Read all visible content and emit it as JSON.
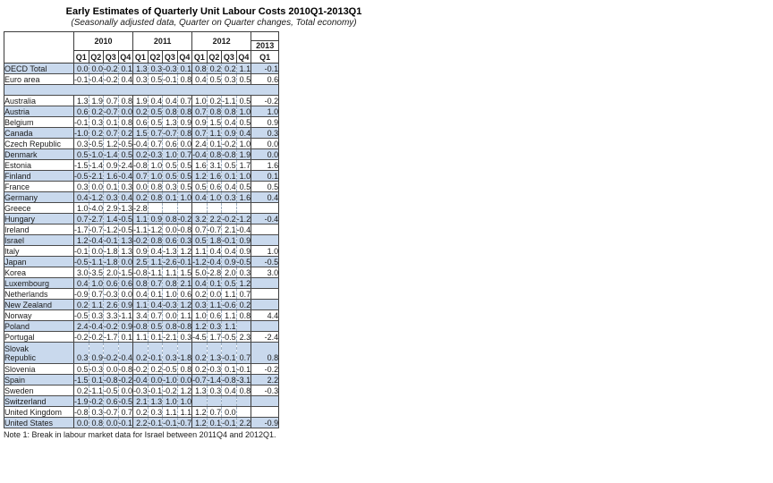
{
  "title": "Early Estimates of Quarterly Unit Labour Costs 2010Q1-2013Q1",
  "subtitle": "(Seasonally adjusted data, Quarter on Quarter changes, Total economy)",
  "note": "Note 1: Break in labour market data for Israel between 2011Q4 and 2012Q1.",
  "colors": {
    "row_highlight": "#c9d9ed",
    "border_dark": "#3c3c3c",
    "border_light": "#9fb0c2"
  },
  "table": {
    "year_groups": [
      {
        "label": "2010",
        "quarters": [
          "Q1",
          "Q2",
          "Q3",
          "Q4"
        ]
      },
      {
        "label": "2011",
        "quarters": [
          "Q1",
          "Q2",
          "Q3",
          "Q4"
        ]
      },
      {
        "label": "2012",
        "quarters": [
          "Q1",
          "Q2",
          "Q3",
          "Q4"
        ]
      },
      {
        "label": "2013",
        "quarters": [
          "Q1"
        ]
      }
    ],
    "rows": [
      {
        "name": "OECD Total",
        "values": [
          "0.0",
          "0.0",
          "-0.2",
          "0.1",
          "1.3",
          "0.3",
          "-0.3",
          "0.1",
          "0.8",
          "0.2",
          "0.2",
          "1.1",
          "-0.1"
        ]
      },
      {
        "name": "Euro area",
        "values": [
          "-0.1",
          "-0.4",
          "-0.2",
          "0.4",
          "0.3",
          "0.5",
          "-0.1",
          "0.8",
          "0.4",
          "0.5",
          "0.3",
          "0.5",
          "0.6"
        ]
      },
      {
        "separator": true
      },
      {
        "name": "Australia",
        "values": [
          "1.3",
          "1.9",
          "0.7",
          "0.8",
          "1.9",
          "0.4",
          "0.4",
          "0.7",
          "1.0",
          "0.2",
          "-1.1",
          "0.5",
          "-0.2"
        ]
      },
      {
        "name": "Austria",
        "values": [
          "0.6",
          "0.2",
          "-0.7",
          "0.0",
          "0.2",
          "0.5",
          "0.8",
          "0.8",
          "0.7",
          "0.8",
          "0.8",
          "1.0",
          "1.0"
        ]
      },
      {
        "name": "Belgium",
        "values": [
          "-0.1",
          "0.3",
          "0.1",
          "0.8",
          "0.6",
          "0.5",
          "1.3",
          "0.9",
          "0.9",
          "1.5",
          "0.4",
          "0.5",
          "0.9"
        ]
      },
      {
        "name": "Canada",
        "values": [
          "-1.0",
          "0.2",
          "0.7",
          "0.2",
          "1.5",
          "0.7",
          "-0.7",
          "0.8",
          "0.7",
          "1.1",
          "0.9",
          "0.4",
          "0.3"
        ]
      },
      {
        "name": "Czech Republic",
        "values": [
          "0.3",
          "-0.5",
          "1.2",
          "-0.5",
          "-0.4",
          "0.7",
          "0.6",
          "0.0",
          "2.4",
          "0.1",
          "-0.2",
          "1.0",
          "0.0"
        ]
      },
      {
        "name": "Denmark",
        "values": [
          "0.5",
          "-1.0",
          "-1.4",
          "0.5",
          "0.2",
          "-0.3",
          "1.0",
          "0.7",
          "-0.4",
          "0.8",
          "-0.8",
          "1.9",
          "0.0"
        ]
      },
      {
        "name": "Estonia",
        "values": [
          "-1.5",
          "-1.4",
          "0.9",
          "-2.4",
          "-0.8",
          "1.0",
          "0.5",
          "0.5",
          "1.6",
          "3.1",
          "0.5",
          "1.7",
          "1.6"
        ]
      },
      {
        "name": "Finland",
        "values": [
          "-0.5",
          "-2.1",
          "1.6",
          "-0.4",
          "0.7",
          "1.0",
          "0.5",
          "0.5",
          "1.2",
          "1.6",
          "0.1",
          "1.0",
          "0.1"
        ]
      },
      {
        "name": "France",
        "values": [
          "0.3",
          "0.0",
          "0.1",
          "0.3",
          "0.0",
          "0.8",
          "0.3",
          "0.5",
          "0.5",
          "0.6",
          "0.4",
          "0.5",
          "0.5"
        ]
      },
      {
        "name": "Germany",
        "values": [
          "0.4",
          "-1.2",
          "0.3",
          "0.4",
          "0.2",
          "0.8",
          "0.1",
          "1.0",
          "0.4",
          "1.0",
          "0.3",
          "1.6",
          "0.4"
        ]
      },
      {
        "name": "Greece",
        "values": [
          "1.0",
          "-4.0",
          "2.9",
          "-1.3",
          "-2.8",
          "",
          "",
          "",
          "",
          "",
          "",
          "",
          ""
        ]
      },
      {
        "name": "Hungary",
        "values": [
          "0.7",
          "-2.7",
          "1.4",
          "-0.5",
          "1.1",
          "0.9",
          "0.8",
          "-0.2",
          "3.2",
          "2.2",
          "-0.2",
          "-1.2",
          "-0.4"
        ]
      },
      {
        "name": "Ireland",
        "values": [
          "-1.7",
          "-0.7",
          "-1.2",
          "-0.5",
          "-1.1",
          "-1.2",
          "0.0",
          "-0.8",
          "0.7",
          "-0.7",
          "2.1",
          "-0.4",
          ""
        ]
      },
      {
        "name": "Israel",
        "values": [
          "1.2",
          "-0.4",
          "-0.1",
          "1.3",
          "-0.2",
          "0.8",
          "0.6",
          "0.3",
          "0.5",
          "1.8",
          "-0.1",
          "0.9",
          ""
        ]
      },
      {
        "name": "Italy",
        "values": [
          "-0.1",
          "0.0",
          "-1.8",
          "1.3",
          "0.9",
          "0.4",
          "-1.3",
          "1.2",
          "1.1",
          "0.4",
          "0.4",
          "0.9",
          "1.0"
        ]
      },
      {
        "name": "Japan",
        "values": [
          "-0.5",
          "-1.1",
          "-1.8",
          "0.0",
          "2.5",
          "1.1",
          "-2.6",
          "-0.1",
          "-1.2",
          "-0.4",
          "0.9",
          "-0.5",
          "-0.5"
        ]
      },
      {
        "name": "Korea",
        "values": [
          "3.0",
          "-3.5",
          "2.0",
          "-1.5",
          "-0.8",
          "-1.1",
          "1.1",
          "1.5",
          "5.0",
          "-2.8",
          "2.0",
          "0.3",
          "3.0"
        ]
      },
      {
        "name": "Luxembourg",
        "values": [
          "0.4",
          "1.0",
          "0.6",
          "0.6",
          "0.8",
          "0.7",
          "0.8",
          "2.1",
          "0.4",
          "0.1",
          "0.5",
          "1.2",
          ""
        ]
      },
      {
        "name": "Netherlands",
        "values": [
          "-0.9",
          "0.7",
          "-0.3",
          "0.0",
          "0.4",
          "0.1",
          "1.0",
          "0.6",
          "0.2",
          "0.0",
          "1.1",
          "0.7",
          ""
        ]
      },
      {
        "name": "New Zealand",
        "values": [
          "0.2",
          "1.1",
          "2.6",
          "0.9",
          "1.1",
          "0.4",
          "-0.3",
          "1.2",
          "0.3",
          "1.1",
          "-0.6",
          "0.2",
          ""
        ]
      },
      {
        "name": "Norway",
        "values": [
          "-0.5",
          "0.3",
          "3.3",
          "-1.1",
          "3.4",
          "0.7",
          "0.0",
          "1.1",
          "1.0",
          "0.6",
          "1.1",
          "0.8",
          "4.4"
        ]
      },
      {
        "name": "Poland",
        "values": [
          "2.4",
          "-0.4",
          "-0.2",
          "0.9",
          "-0.8",
          "0.5",
          "0.8",
          "-0.8",
          "1.2",
          "0.3",
          "1.1",
          "",
          ""
        ]
      },
      {
        "name": "Portugal",
        "values": [
          "-0.2",
          "-0.2",
          "-1.7",
          "0.1",
          "1.1",
          "0.1",
          "-2.1",
          "0.3",
          "-4.5",
          "1.7",
          "-0.5",
          "2.3",
          "-2.4"
        ]
      },
      {
        "name": "Slovak Republic",
        "wrap": true,
        "values": [
          "0.3",
          "0.9",
          "-0.2",
          "-0.4",
          "0.2",
          "-0.1",
          "0.3",
          "-1.8",
          "0.2",
          "1.3",
          "-0.1",
          "0.7",
          "0.8"
        ]
      },
      {
        "name": "Slovenia",
        "values": [
          "0.5",
          "-0.3",
          "0.0",
          "-0.8",
          "-0.2",
          "0.2",
          "-0.5",
          "0.8",
          "0.2",
          "-0.3",
          "0.1",
          "-0.1",
          "-0.2"
        ]
      },
      {
        "name": "Spain",
        "values": [
          "-1.5",
          "0.1",
          "-0.8",
          "-0.2",
          "-0.4",
          "0.0",
          "-1.0",
          "0.0",
          "-0.7",
          "-1.4",
          "-0.8",
          "-3.1",
          "2.2"
        ]
      },
      {
        "name": "Sweden",
        "values": [
          "0.2",
          "-1.1",
          "-0.5",
          "0.0",
          "-0.3",
          "-0.1",
          "-0.2",
          "1.2",
          "1.3",
          "0.3",
          "0.4",
          "0.8",
          "-0.3"
        ]
      },
      {
        "name": "Switzerland",
        "values": [
          "-1.9",
          "-0.2",
          "0.6",
          "-0.5",
          "2.1",
          "1.3",
          "1.0",
          "1.0",
          "",
          "",
          "",
          "",
          ""
        ]
      },
      {
        "name": "United Kingdom",
        "values": [
          "-0.8",
          "0.3",
          "-0.7",
          "0.7",
          "0.2",
          "0.3",
          "1.1",
          "1.1",
          "1.2",
          "0.7",
          "0.0",
          "",
          ""
        ]
      },
      {
        "name": "United States",
        "values": [
          "0.0",
          "0.8",
          "0.0",
          "-0.1",
          "2.2",
          "-0.1",
          "-0.1",
          "-0.7",
          "1.2",
          "0.1",
          "-0.1",
          "2.2",
          "-0.9"
        ]
      }
    ]
  }
}
